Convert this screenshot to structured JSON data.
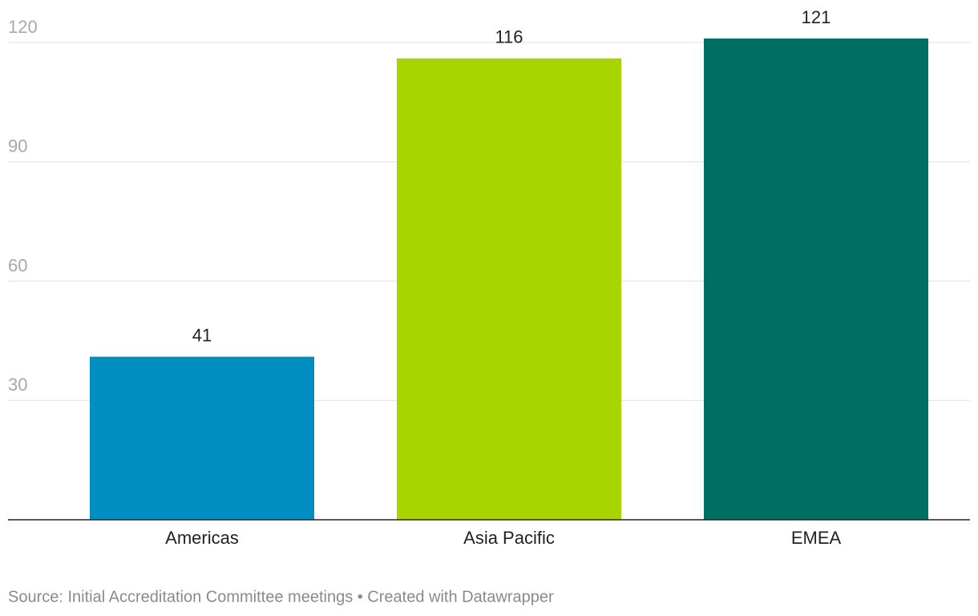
{
  "chart_data": {
    "type": "bar",
    "categories": [
      "Americas",
      "Asia Pacific",
      "EMEA"
    ],
    "values": [
      41,
      116,
      121
    ],
    "colors": [
      "#008fc0",
      "#a8d400",
      "#006e64"
    ],
    "ylim": [
      0,
      121
    ],
    "yticks": [
      30,
      60,
      90,
      120
    ],
    "grid": true,
    "source": "Source: Initial Accreditation Committee meetings • Created with Datawrapper"
  }
}
